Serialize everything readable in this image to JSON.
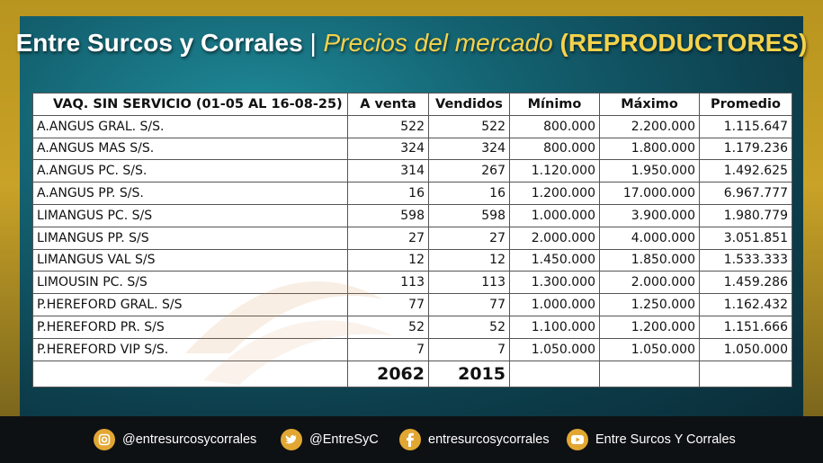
{
  "title": {
    "brand": "Entre Surcos y Corrales",
    "separator": "|",
    "subtitle": "Precios del mercado",
    "category": "(REPRODUCTORES)"
  },
  "table": {
    "headers": [
      "VAQ. SIN SERVICIO  (01-05 AL 16-08-25)",
      "A venta",
      "Vendidos",
      "Mínimo",
      "Máximo",
      "Promedio"
    ],
    "rows": [
      [
        "A.ANGUS GRAL. S/S.",
        "522",
        "522",
        "800.000",
        "2.200.000",
        "1.115.647"
      ],
      [
        "A.ANGUS MAS S/S.",
        "324",
        "324",
        "800.000",
        "1.800.000",
        "1.179.236"
      ],
      [
        "A.ANGUS PC. S/S.",
        "314",
        "267",
        "1.120.000",
        "1.950.000",
        "1.492.625"
      ],
      [
        "A.ANGUS PP. S/S.",
        "16",
        "16",
        "1.200.000",
        "17.000.000",
        "6.967.777"
      ],
      [
        "LIMANGUS PC. S/S",
        "598",
        "598",
        "1.000.000",
        "3.900.000",
        "1.980.779"
      ],
      [
        "LIMANGUS PP. S/S",
        "27",
        "27",
        "2.000.000",
        "4.000.000",
        "3.051.851"
      ],
      [
        "LIMANGUS VAL S/S",
        "12",
        "12",
        "1.450.000",
        "1.850.000",
        "1.533.333"
      ],
      [
        "LIMOUSIN PC. S/S",
        "113",
        "113",
        "1.300.000",
        "2.000.000",
        "1.459.286"
      ],
      [
        "P.HEREFORD GRAL. S/S",
        "77",
        "77",
        "1.000.000",
        "1.250.000",
        "1.162.432"
      ],
      [
        "P.HEREFORD PR. S/S",
        "52",
        "52",
        "1.100.000",
        "1.200.000",
        "1.151.666"
      ],
      [
        "P.HEREFORD VIP S/S.",
        "7",
        "7",
        "1.050.000",
        "1.050.000",
        "1.050.000"
      ]
    ],
    "totals": {
      "a_venta": "2062",
      "vendidos": "2015"
    }
  },
  "footer": {
    "instagram": "@entresurcosycorrales",
    "twitter": "@EntreSyC",
    "facebook": "entresurcosycorrales",
    "youtube": "Entre Surcos Y Corrales"
  }
}
